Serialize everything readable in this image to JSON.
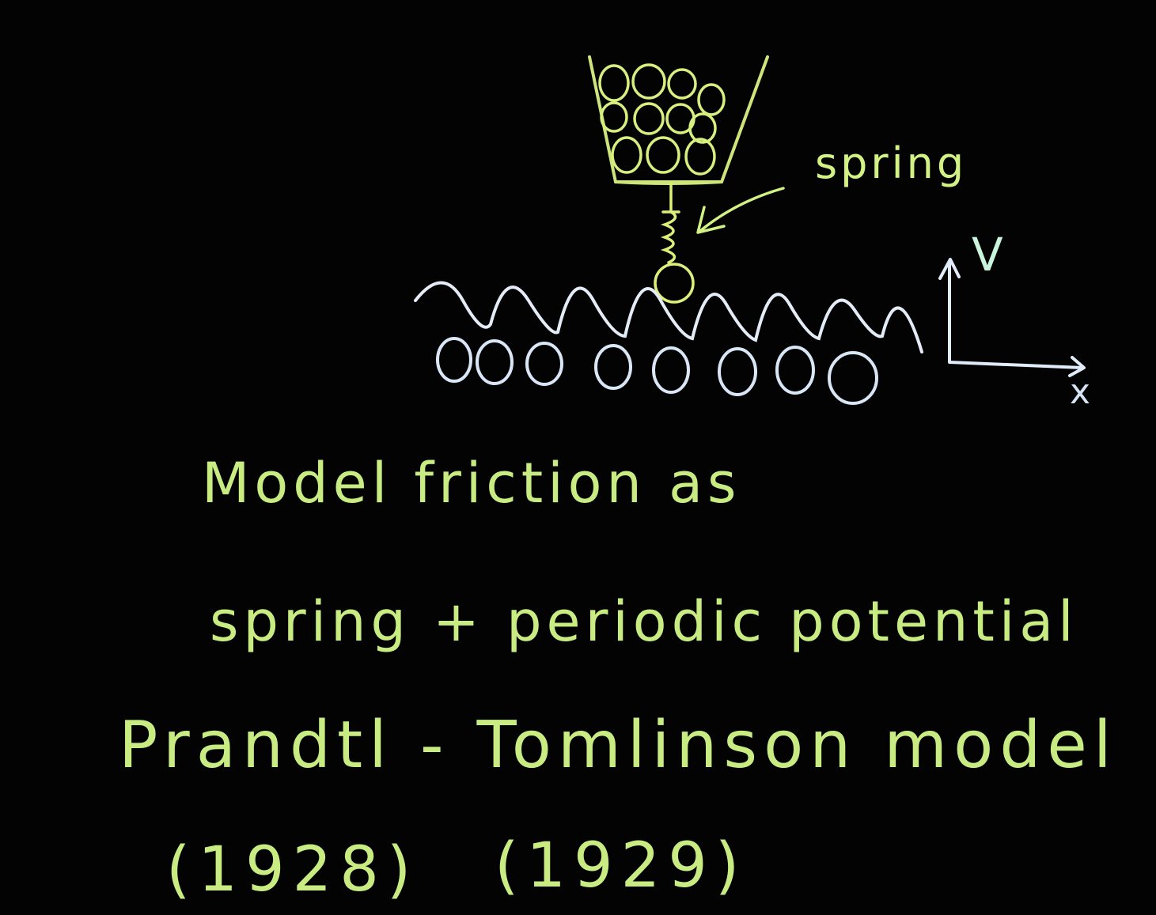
{
  "labels": {
    "spring": "spring",
    "axis_v": "V",
    "axis_x": "x"
  },
  "text_lines": {
    "line1": "Model friction as",
    "line2": "spring + periodic potential",
    "line3": "Prandtl - Tomlinson model",
    "year_prandtl": "(1928)",
    "year_tomlinson": "(1929)"
  },
  "colors": {
    "chalk_green": "#c8ec82",
    "chalk_white": "#dce8f6",
    "board": "#030303"
  }
}
